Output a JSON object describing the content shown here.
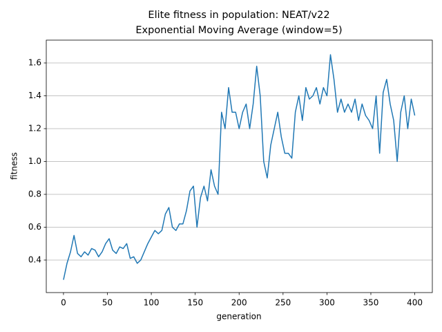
{
  "chart_data": {
    "type": "line",
    "title": "Elite fitness in population: NEAT/v22",
    "subtitle": "Exponential Moving Average (window=5)",
    "x_label": "generation",
    "y_label": "fitness",
    "x": [
      0,
      4,
      8,
      12,
      16,
      20,
      24,
      28,
      32,
      36,
      40,
      44,
      48,
      52,
      56,
      60,
      64,
      68,
      72,
      76,
      80,
      84,
      88,
      92,
      96,
      100,
      104,
      108,
      112,
      116,
      120,
      124,
      128,
      132,
      136,
      140,
      144,
      148,
      152,
      156,
      160,
      164,
      168,
      172,
      176,
      180,
      184,
      188,
      192,
      196,
      200,
      204,
      208,
      212,
      216,
      220,
      224,
      228,
      232,
      236,
      240,
      244,
      248,
      252,
      256,
      260,
      264,
      268,
      272,
      276,
      280,
      284,
      288,
      292,
      296,
      300,
      304,
      308,
      312,
      316,
      320,
      324,
      328,
      332,
      336,
      340,
      344,
      348,
      352,
      356,
      360,
      364,
      368,
      372,
      376,
      380,
      384,
      388,
      392,
      396,
      400
    ],
    "series": [
      {
        "name": "fitness",
        "color": "#1f77b4",
        "values": [
          0.28,
          0.38,
          0.45,
          0.55,
          0.44,
          0.42,
          0.45,
          0.43,
          0.47,
          0.46,
          0.42,
          0.45,
          0.5,
          0.53,
          0.46,
          0.44,
          0.48,
          0.47,
          0.5,
          0.41,
          0.42,
          0.38,
          0.4,
          0.45,
          0.5,
          0.54,
          0.58,
          0.56,
          0.58,
          0.68,
          0.72,
          0.6,
          0.58,
          0.62,
          0.62,
          0.7,
          0.82,
          0.85,
          0.6,
          0.78,
          0.85,
          0.76,
          0.95,
          0.85,
          0.8,
          1.3,
          1.2,
          1.45,
          1.3,
          1.3,
          1.2,
          1.3,
          1.35,
          1.2,
          1.35,
          1.58,
          1.4,
          1.0,
          0.9,
          1.1,
          1.2,
          1.3,
          1.15,
          1.05,
          1.05,
          1.02,
          1.3,
          1.4,
          1.25,
          1.45,
          1.38,
          1.4,
          1.45,
          1.35,
          1.45,
          1.4,
          1.65,
          1.5,
          1.3,
          1.38,
          1.3,
          1.35,
          1.3,
          1.38,
          1.25,
          1.35,
          1.28,
          1.25,
          1.2,
          1.4,
          1.05,
          1.42,
          1.5,
          1.35,
          1.25,
          1.0,
          1.3,
          1.4,
          1.2,
          1.38,
          1.28
        ]
      }
    ],
    "xlim": [
      -19.6,
      420
    ],
    "ylim": [
      0.202,
      1.739
    ],
    "xticks": [
      0,
      50,
      100,
      150,
      200,
      250,
      300,
      350,
      400
    ],
    "yticks": [
      0.4,
      0.6,
      0.8,
      {
        "value": 1,
        "label": "1.0"
      },
      1.2,
      1.4,
      1.6
    ],
    "grid": "y"
  }
}
